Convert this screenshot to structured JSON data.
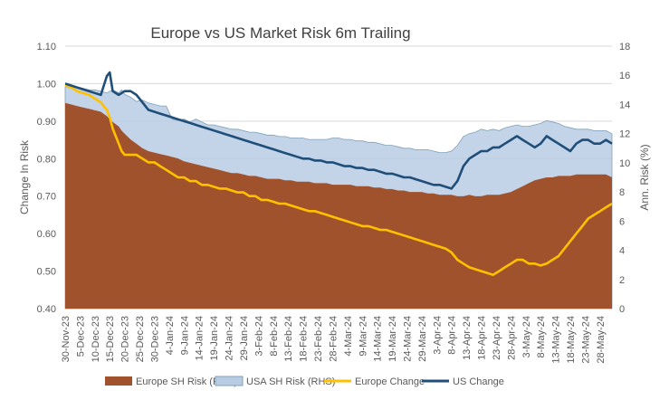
{
  "chart_data": {
    "type": "area",
    "title": "Europe vs US Market Risk 6m Trailing",
    "ylabel": "Change In Risk",
    "y2label": "Ann. Risk (%)",
    "ylim": [
      0.4,
      1.1
    ],
    "y_ticks": [
      "0.40",
      "0.50",
      "0.60",
      "0.70",
      "0.80",
      "0.90",
      "1.00",
      "1.10"
    ],
    "y2lim": [
      0,
      18
    ],
    "y2_ticks": [
      "0",
      "2",
      "4",
      "6",
      "8",
      "10",
      "12",
      "14",
      "16",
      "18"
    ],
    "x_tick_labels": [
      "30-Nov-23",
      "5-Dec-23",
      "10-Dec-23",
      "15-Dec-23",
      "20-Dec-23",
      "25-Dec-23",
      "30-Dec-23",
      "4-Jan-24",
      "9-Jan-24",
      "14-Jan-24",
      "19-Jan-24",
      "24-Jan-24",
      "29-Jan-24",
      "3-Feb-24",
      "8-Feb-24",
      "13-Feb-24",
      "18-Feb-24",
      "23-Feb-24",
      "28-Feb-24",
      "4-Mar-24",
      "9-Mar-24",
      "14-Mar-24",
      "19-Mar-24",
      "24-Mar-24",
      "29-Mar-24",
      "3-Apr-24",
      "8-Apr-24",
      "13-Apr-24",
      "18-Apr-24",
      "23-Apr-24",
      "28-Apr-24",
      "3-May-24",
      "8-May-24",
      "13-May-24",
      "18-May-24",
      "23-May-24",
      "28-May-24"
    ],
    "grid": true,
    "legend_position": "bottom",
    "x_days": [
      0,
      2,
      4,
      6,
      8,
      10,
      12,
      14,
      15,
      16,
      18,
      19,
      20,
      22,
      24,
      26,
      28,
      30,
      32,
      34,
      36,
      38,
      40,
      42,
      44,
      46,
      48,
      50,
      52,
      54,
      56,
      58,
      60,
      62,
      64,
      66,
      68,
      70,
      72,
      74,
      76,
      78,
      80,
      82,
      84,
      86,
      88,
      90,
      92,
      94,
      96,
      98,
      100,
      102,
      104,
      106,
      108,
      110,
      112,
      114,
      116,
      118,
      120,
      122,
      124,
      126,
      128,
      130,
      132,
      134,
      136,
      138,
      140,
      142,
      144,
      146,
      148,
      150,
      152,
      154,
      156,
      158,
      160,
      162,
      164,
      166,
      168,
      170,
      172,
      174,
      176,
      178,
      180,
      182,
      184
    ],
    "series": [
      {
        "name": "Europe SH Risk (RHS)",
        "type": "area",
        "axis": "right",
        "color": "#A0522D",
        "values": [
          14.1,
          14.0,
          13.9,
          13.8,
          13.7,
          13.6,
          13.5,
          13.2,
          13.0,
          12.8,
          12.5,
          12.2,
          12.0,
          11.6,
          11.3,
          11.0,
          10.8,
          10.7,
          10.6,
          10.5,
          10.4,
          10.3,
          10.1,
          10.0,
          9.9,
          9.8,
          9.7,
          9.6,
          9.5,
          9.4,
          9.3,
          9.3,
          9.2,
          9.1,
          9.1,
          9.0,
          8.9,
          8.9,
          8.9,
          8.8,
          8.8,
          8.7,
          8.7,
          8.7,
          8.6,
          8.6,
          8.6,
          8.5,
          8.5,
          8.5,
          8.5,
          8.4,
          8.4,
          8.4,
          8.3,
          8.3,
          8.2,
          8.2,
          8.1,
          8.1,
          8.0,
          8.0,
          8.0,
          7.9,
          7.9,
          7.8,
          7.8,
          7.8,
          7.7,
          7.7,
          7.8,
          7.7,
          7.7,
          7.8,
          7.8,
          7.8,
          7.9,
          8.0,
          8.2,
          8.4,
          8.6,
          8.8,
          8.9,
          9.0,
          9.0,
          9.1,
          9.1,
          9.1,
          9.2,
          9.2,
          9.2,
          9.2,
          9.2,
          9.2,
          9.0
        ]
      },
      {
        "name": "USA SH Risk (RHS)",
        "type": "area",
        "axis": "right",
        "color": "#B8CCE4",
        "values": [
          15.2,
          15.3,
          15.2,
          15.1,
          15.0,
          15.0,
          14.9,
          14.8,
          14.9,
          15.0,
          14.8,
          15.0,
          14.7,
          14.5,
          14.2,
          14.3,
          14.1,
          14.0,
          13.9,
          13.9,
          13.0,
          12.9,
          13.0,
          12.8,
          13.0,
          12.8,
          12.6,
          12.6,
          12.5,
          12.4,
          12.3,
          12.3,
          12.2,
          12.1,
          12.1,
          12.0,
          11.9,
          11.9,
          11.8,
          11.8,
          11.7,
          11.7,
          11.7,
          11.6,
          11.6,
          11.6,
          11.6,
          11.7,
          11.7,
          11.6,
          11.6,
          11.5,
          11.5,
          11.4,
          11.4,
          11.3,
          11.2,
          11.2,
          11.1,
          11.0,
          11.0,
          10.9,
          10.9,
          10.9,
          10.8,
          10.7,
          10.7,
          10.8,
          11.2,
          11.8,
          12.0,
          12.1,
          12.3,
          12.2,
          12.3,
          12.2,
          12.4,
          12.5,
          12.6,
          12.5,
          12.5,
          12.6,
          12.7,
          12.9,
          12.8,
          12.7,
          12.5,
          12.4,
          12.3,
          12.3,
          12.3,
          12.2,
          12.2,
          12.2,
          12.0
        ]
      },
      {
        "name": "Europe Change",
        "type": "line",
        "axis": "left",
        "color": "#FFC000",
        "values": [
          0.995,
          0.99,
          0.98,
          0.975,
          0.97,
          0.96,
          0.95,
          0.93,
          0.91,
          0.88,
          0.84,
          0.82,
          0.81,
          0.81,
          0.81,
          0.8,
          0.79,
          0.79,
          0.78,
          0.77,
          0.76,
          0.75,
          0.75,
          0.74,
          0.74,
          0.73,
          0.73,
          0.725,
          0.72,
          0.72,
          0.715,
          0.71,
          0.71,
          0.7,
          0.7,
          0.69,
          0.69,
          0.685,
          0.68,
          0.68,
          0.675,
          0.67,
          0.665,
          0.66,
          0.66,
          0.655,
          0.65,
          0.645,
          0.64,
          0.635,
          0.63,
          0.625,
          0.62,
          0.62,
          0.615,
          0.61,
          0.61,
          0.605,
          0.6,
          0.595,
          0.59,
          0.585,
          0.58,
          0.575,
          0.57,
          0.565,
          0.56,
          0.55,
          0.53,
          0.52,
          0.51,
          0.505,
          0.5,
          0.495,
          0.49,
          0.5,
          0.51,
          0.52,
          0.53,
          0.53,
          0.52,
          0.52,
          0.515,
          0.52,
          0.53,
          0.54,
          0.56,
          0.58,
          0.6,
          0.62,
          0.64,
          0.65,
          0.66,
          0.67,
          0.68
        ]
      },
      {
        "name": "US Change",
        "type": "line",
        "axis": "left",
        "color": "#1F4E79",
        "values": [
          1.0,
          0.995,
          0.99,
          0.985,
          0.98,
          0.975,
          0.97,
          1.02,
          1.03,
          0.98,
          0.97,
          0.975,
          0.98,
          0.98,
          0.97,
          0.95,
          0.93,
          0.925,
          0.92,
          0.915,
          0.91,
          0.905,
          0.9,
          0.895,
          0.89,
          0.885,
          0.88,
          0.875,
          0.87,
          0.865,
          0.86,
          0.855,
          0.85,
          0.845,
          0.84,
          0.835,
          0.83,
          0.825,
          0.82,
          0.815,
          0.81,
          0.805,
          0.8,
          0.8,
          0.795,
          0.795,
          0.79,
          0.79,
          0.785,
          0.78,
          0.78,
          0.775,
          0.775,
          0.77,
          0.77,
          0.765,
          0.76,
          0.76,
          0.755,
          0.75,
          0.75,
          0.745,
          0.74,
          0.735,
          0.73,
          0.73,
          0.725,
          0.72,
          0.74,
          0.78,
          0.8,
          0.81,
          0.82,
          0.82,
          0.83,
          0.83,
          0.84,
          0.85,
          0.86,
          0.85,
          0.84,
          0.83,
          0.84,
          0.86,
          0.85,
          0.84,
          0.83,
          0.82,
          0.84,
          0.85,
          0.85,
          0.84,
          0.84,
          0.85,
          0.84
        ]
      }
    ]
  }
}
